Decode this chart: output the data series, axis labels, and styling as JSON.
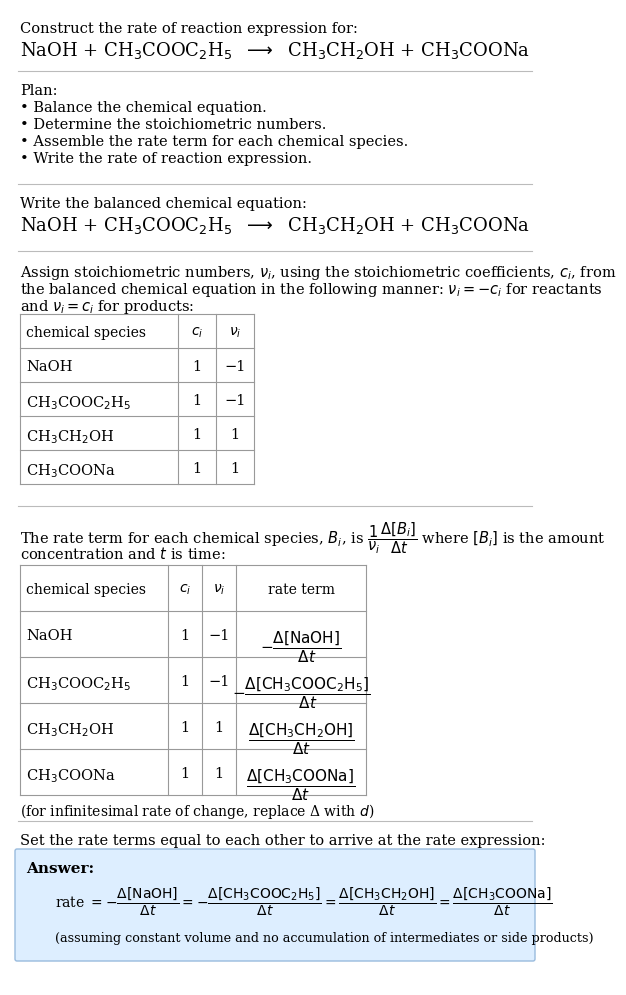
{
  "bg_color": "#ffffff",
  "text_color": "#000000",
  "answer_bg": "#ddeeff",
  "title_line1": "Construct the rate of reaction expression for:",
  "reaction_equation": "NaOH + CH$_3$COOC$_2$H$_5$  $\\longrightarrow$  CH$_3$CH$_2$OH + CH$_3$COONa",
  "plan_header": "Plan:",
  "plan_items": [
    "• Balance the chemical equation.",
    "• Determine the stoichiometric numbers.",
    "• Assemble the rate term for each chemical species.",
    "• Write the rate of reaction expression."
  ],
  "balanced_header": "Write the balanced chemical equation:",
  "balanced_eq": "NaOH + CH$_3$COOC$_2$H$_5$  $\\longrightarrow$  CH$_3$CH$_2$OH + CH$_3$COONa",
  "assign_text1": "Assign stoichiometric numbers, $\\nu_i$, using the stoichiometric coefficients, $c_i$, from",
  "assign_text2": "the balanced chemical equation in the following manner: $\\nu_i = -c_i$ for reactants",
  "assign_text3": "and $\\nu_i = c_i$ for products:",
  "table1_headers": [
    "chemical species",
    "$c_i$",
    "$\\nu_i$"
  ],
  "table1_rows": [
    [
      "NaOH",
      "1",
      "−1"
    ],
    [
      "CH$_3$COOC$_2$H$_5$",
      "1",
      "−1"
    ],
    [
      "CH$_3$CH$_2$OH",
      "1",
      "1"
    ],
    [
      "CH$_3$COONa",
      "1",
      "1"
    ]
  ],
  "rate_text1": "The rate term for each chemical species, $B_i$, is $\\dfrac{1}{\\nu_i}\\dfrac{\\Delta[B_i]}{\\Delta t}$ where $[B_i]$ is the amount",
  "rate_text2": "concentration and $t$ is time:",
  "table2_headers": [
    "chemical species",
    "$c_i$",
    "$\\nu_i$",
    "rate term"
  ],
  "table2_rows": [
    [
      "NaOH",
      "1",
      "−1",
      "$-\\dfrac{\\Delta[\\mathrm{NaOH}]}{\\Delta t}$"
    ],
    [
      "CH$_3$COOC$_2$H$_5$",
      "1",
      "−1",
      "$-\\dfrac{\\Delta[\\mathrm{CH_3COOC_2H_5}]}{\\Delta t}$"
    ],
    [
      "CH$_3$CH$_2$OH",
      "1",
      "1",
      "$\\dfrac{\\Delta[\\mathrm{CH_3CH_2OH}]}{\\Delta t}$"
    ],
    [
      "CH$_3$COONa",
      "1",
      "1",
      "$\\dfrac{\\Delta[\\mathrm{CH_3COONa}]}{\\Delta t}$"
    ]
  ],
  "infinitesimal_note": "(for infinitesimal rate of change, replace Δ with $d$)",
  "set_rate_text": "Set the rate terms equal to each other to arrive at the rate expression:",
  "answer_label": "Answer:",
  "rate_expression": "rate $= -\\dfrac{\\Delta[\\mathrm{NaOH}]}{\\Delta t} = -\\dfrac{\\Delta[\\mathrm{CH_3COOC_2H_5}]}{\\Delta t} = \\dfrac{\\Delta[\\mathrm{CH_3CH_2OH}]}{\\Delta t} = \\dfrac{\\Delta[\\mathrm{CH_3COONa}]}{\\Delta t}$",
  "assuming_note": "(assuming constant volume and no accumulation of intermediates or side products)"
}
